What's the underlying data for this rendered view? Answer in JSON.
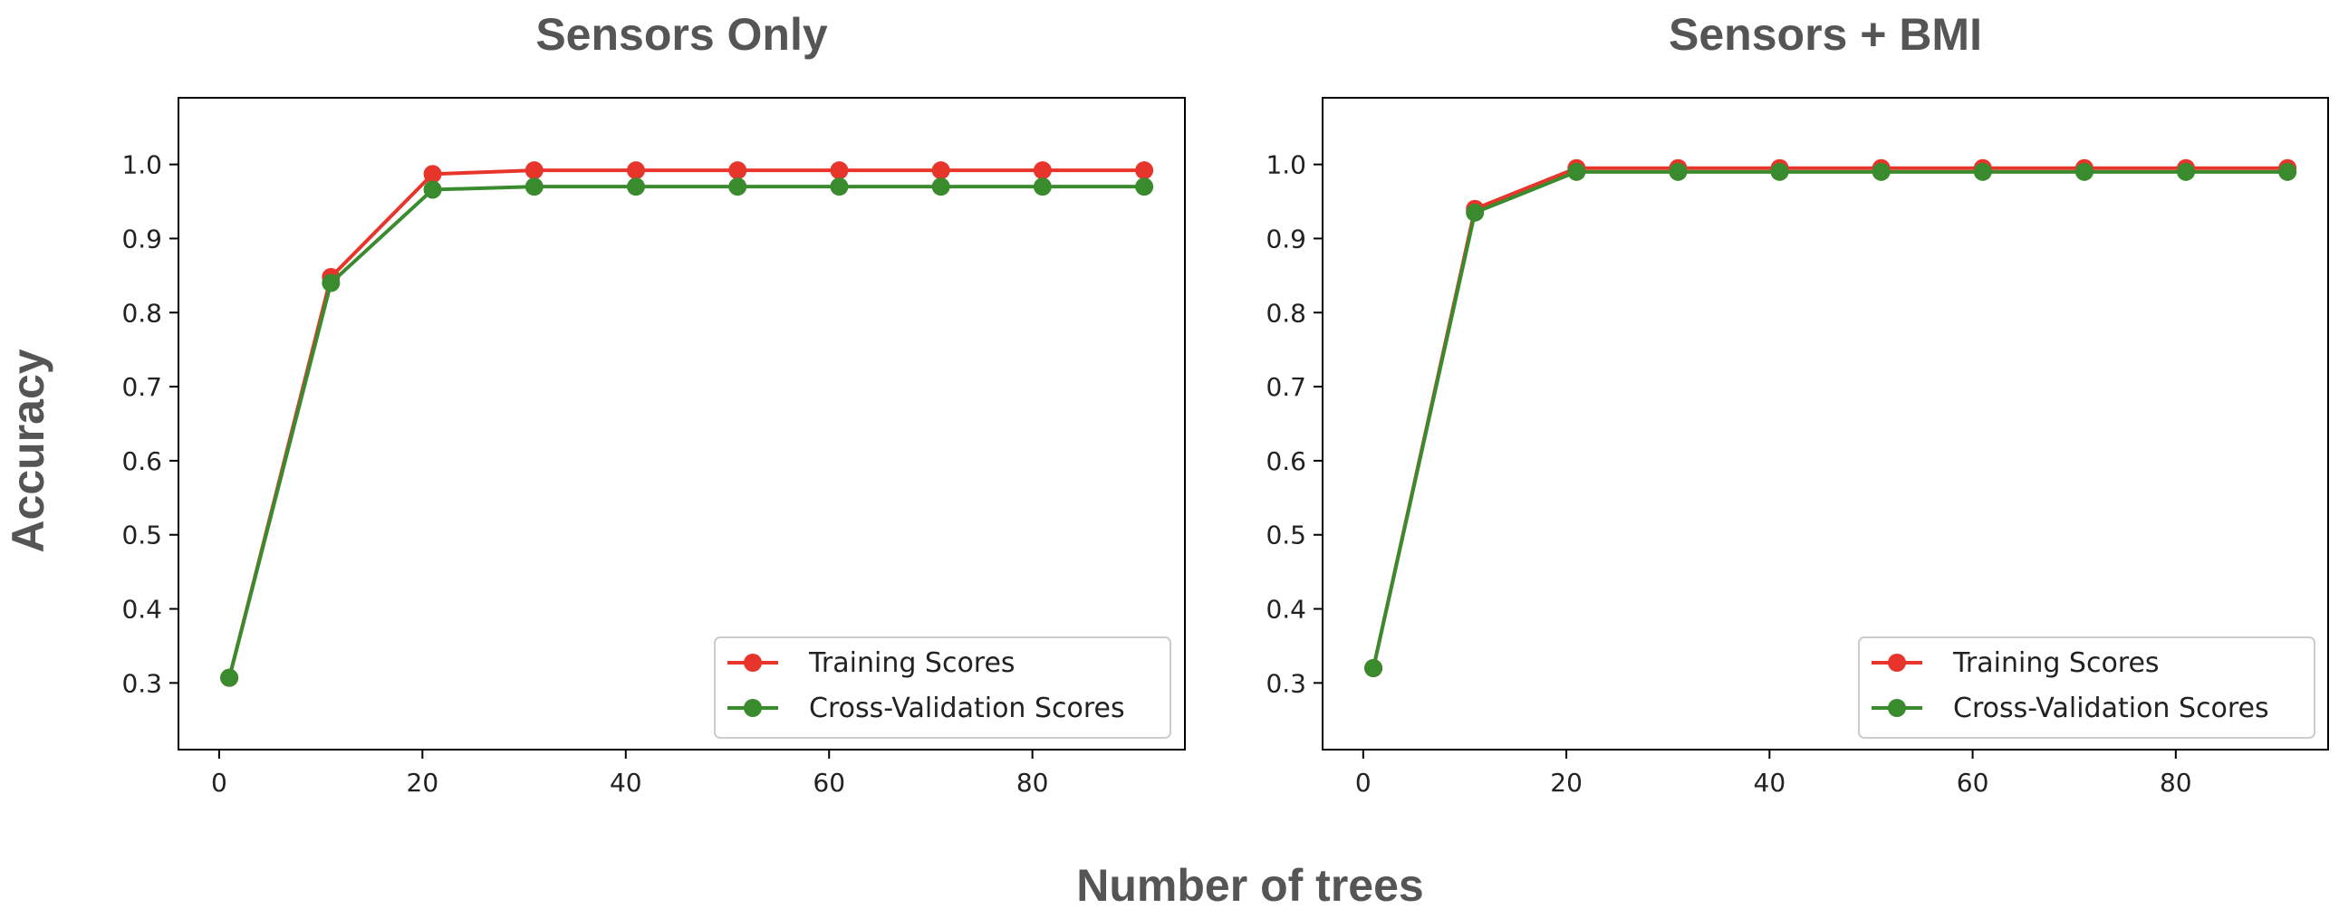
{
  "figure": {
    "ylabel": "Accuracy",
    "xlabel": "Number of trees"
  },
  "chart_data": [
    {
      "type": "line",
      "title": "Sensors Only",
      "x": [
        1,
        11,
        21,
        31,
        41,
        51,
        61,
        71,
        81,
        91
      ],
      "series": [
        {
          "name": "Training Scores",
          "color": "#e8352b",
          "values": [
            0.307,
            0.848,
            0.987,
            0.992,
            0.992,
            0.992,
            0.992,
            0.992,
            0.992,
            0.992
          ]
        },
        {
          "name": "Cross-Validation Scores",
          "color": "#3a8a2e",
          "values": [
            0.307,
            0.84,
            0.966,
            0.97,
            0.97,
            0.97,
            0.97,
            0.97,
            0.97,
            0.97
          ]
        }
      ],
      "xlim": [
        -4,
        95
      ],
      "ylim": [
        0.21,
        1.09
      ],
      "xticks": [
        0,
        20,
        40,
        60,
        80
      ],
      "yticks": [
        0.3,
        0.4,
        0.5,
        0.6,
        0.7,
        0.8,
        0.9,
        1.0
      ],
      "ytick_labels": [
        "0.3",
        "0.4",
        "0.5",
        "0.6",
        "0.7",
        "0.8",
        "0.9",
        "1.0"
      ],
      "legend": "bottom-right"
    },
    {
      "type": "line",
      "title": "Sensors + BMI",
      "x": [
        1,
        11,
        21,
        31,
        41,
        51,
        61,
        71,
        81,
        91
      ],
      "series": [
        {
          "name": "Training Scores",
          "color": "#e8352b",
          "values": [
            0.32,
            0.94,
            0.995,
            0.995,
            0.995,
            0.995,
            0.995,
            0.995,
            0.995,
            0.995
          ]
        },
        {
          "name": "Cross-Validation Scores",
          "color": "#3a8a2e",
          "values": [
            0.32,
            0.935,
            0.99,
            0.99,
            0.99,
            0.99,
            0.99,
            0.99,
            0.99,
            0.99
          ]
        }
      ],
      "xlim": [
        -4,
        95
      ],
      "ylim": [
        0.21,
        1.09
      ],
      "xticks": [
        0,
        20,
        40,
        60,
        80
      ],
      "yticks": [
        0.3,
        0.4,
        0.5,
        0.6,
        0.7,
        0.8,
        0.9,
        1.0
      ],
      "ytick_labels": [
        "0.3",
        "0.4",
        "0.5",
        "0.6",
        "0.7",
        "0.8",
        "0.9",
        "1.0"
      ],
      "legend": "bottom-right"
    }
  ]
}
